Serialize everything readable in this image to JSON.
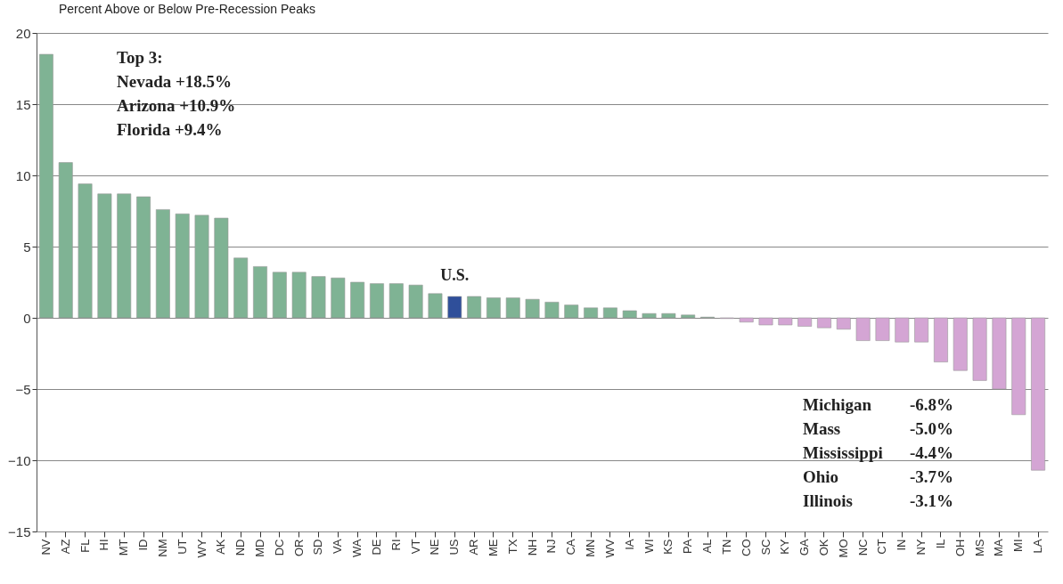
{
  "chart_data": {
    "type": "bar",
    "title": "Percent Above or Below Pre-Recession Peaks",
    "categories": [
      "NV",
      "AZ",
      "FL",
      "HI",
      "MT",
      "ID",
      "NM",
      "UT",
      "WY",
      "AK",
      "ND",
      "MD",
      "DC",
      "OR",
      "SD",
      "VA",
      "WA",
      "DE",
      "RI",
      "VT",
      "NE",
      "US",
      "AR",
      "ME",
      "TX",
      "NH",
      "NJ",
      "CA",
      "MN",
      "WV",
      "IA",
      "WI",
      "KS",
      "PA",
      "AL",
      "TN",
      "CO",
      "SC",
      "KY",
      "GA",
      "OK",
      "MO",
      "NC",
      "CT",
      "IN",
      "NY",
      "IL",
      "OH",
      "MS",
      "MA",
      "MI",
      "LA"
    ],
    "values": [
      18.5,
      10.9,
      9.4,
      8.7,
      8.7,
      8.5,
      7.6,
      7.3,
      7.2,
      7.0,
      4.2,
      3.6,
      3.2,
      3.2,
      2.9,
      2.8,
      2.5,
      2.4,
      2.4,
      2.3,
      1.7,
      1.5,
      1.5,
      1.4,
      1.4,
      1.3,
      1.1,
      0.9,
      0.7,
      0.7,
      0.5,
      0.3,
      0.3,
      0.2,
      0.05,
      -0.05,
      -0.3,
      -0.5,
      -0.5,
      -0.6,
      -0.7,
      -0.8,
      -1.6,
      -1.6,
      -1.7,
      -1.7,
      -3.1,
      -3.7,
      -4.4,
      -5.0,
      -6.8,
      -10.7
    ],
    "colors": [
      "#7fb394",
      "#7fb394",
      "#7fb394",
      "#7fb394",
      "#7fb394",
      "#7fb394",
      "#7fb394",
      "#7fb394",
      "#7fb394",
      "#7fb394",
      "#7fb394",
      "#7fb394",
      "#7fb394",
      "#7fb394",
      "#7fb394",
      "#7fb394",
      "#7fb394",
      "#7fb394",
      "#7fb394",
      "#7fb394",
      "#7fb394",
      "#2f4f9a",
      "#7fb394",
      "#7fb394",
      "#7fb394",
      "#7fb394",
      "#7fb394",
      "#7fb394",
      "#7fb394",
      "#7fb394",
      "#7fb394",
      "#7fb394",
      "#7fb394",
      "#7fb394",
      "#7fb394",
      "#d4a5d4",
      "#d4a5d4",
      "#d4a5d4",
      "#d4a5d4",
      "#d4a5d4",
      "#d4a5d4",
      "#d4a5d4",
      "#d4a5d4",
      "#d4a5d4",
      "#d4a5d4",
      "#d4a5d4",
      "#d4a5d4",
      "#d4a5d4",
      "#d4a5d4",
      "#d4a5d4",
      "#d4a5d4",
      "#d4a5d4"
    ],
    "ylim": [
      -15,
      20
    ],
    "yticks": [
      -15,
      -10,
      -5,
      0,
      5,
      10,
      15,
      20
    ],
    "grid": "y",
    "annotations": [
      "Top 3:",
      "Nevada  +18.5%",
      "Arizona +10.9%",
      "Florida    +9.4%",
      {
        "text": "U.S.",
        "x": "US",
        "y": 1.5
      },
      "Michigan -6.8%",
      "Mass -5.0%",
      "Mississippi -4.4%",
      "Ohio -3.7%",
      "Illinois -3.1%"
    ]
  }
}
